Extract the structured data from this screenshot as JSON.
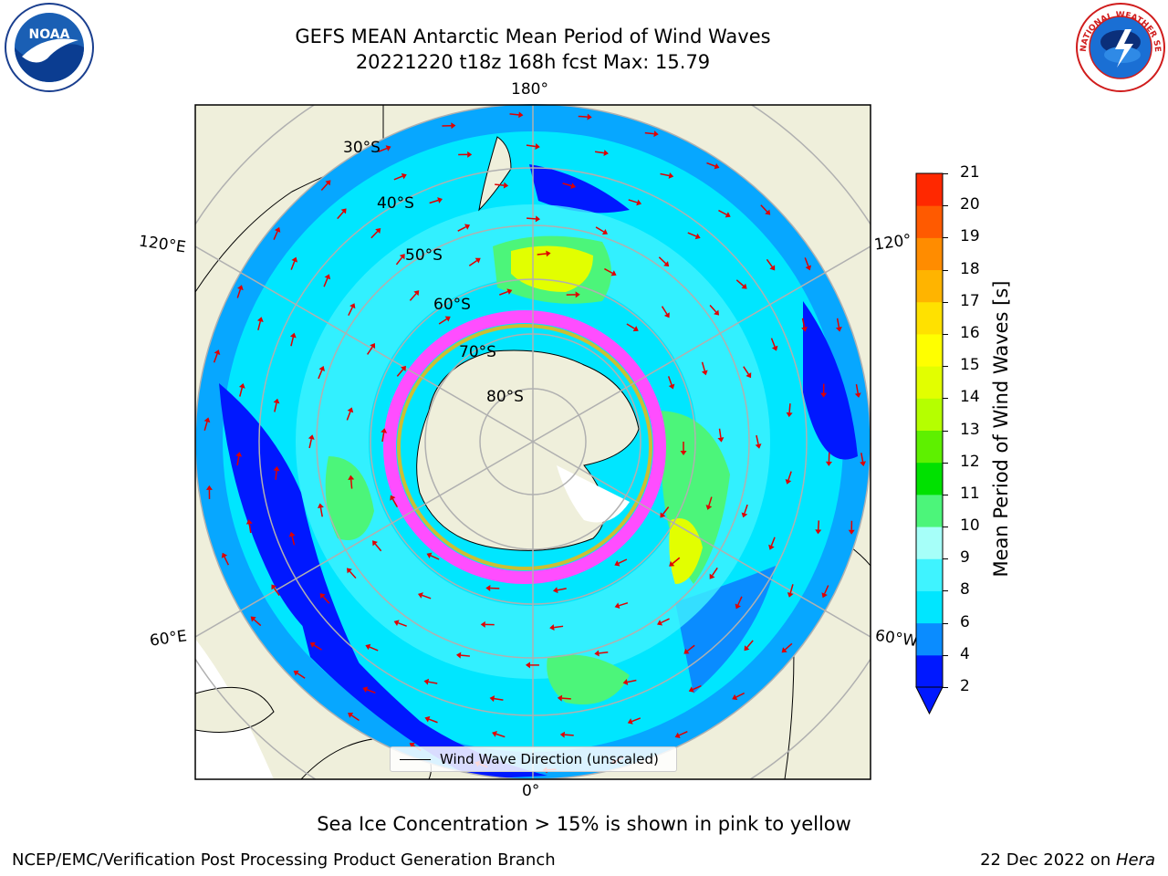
{
  "title_line1": "GEFS MEAN Antarctic Mean Period of Wind Waves",
  "title_line2": "20221220 t18z 168h fcst   Max: 15.79",
  "logos": {
    "left": "noaa-logo",
    "right": "national-weather-service-logo"
  },
  "map": {
    "projection": "south-polar-stereographic",
    "lon_labels": [
      "180°",
      "120°E",
      "120°",
      "60°E",
      "60°W",
      "0°"
    ],
    "lat_labels": [
      "30°S",
      "40°S",
      "50°S",
      "60°S",
      "70°S",
      "80°S"
    ],
    "legend_label": "Wind Wave Direction (unscaled)"
  },
  "colorbar": {
    "label": "Mean Period of Wind Waves [s]",
    "ticks": [
      "2",
      "4",
      "6",
      "8",
      "9",
      "10",
      "11",
      "12",
      "13",
      "14",
      "15",
      "16",
      "17",
      "18",
      "19",
      "20",
      "21"
    ],
    "colors": [
      "#0018ff",
      "#0a8cff",
      "#00e6ff",
      "#3ff3ff",
      "#a6fff9",
      "#4cf57a",
      "#00e100",
      "#5ef000",
      "#b5ff00",
      "#e2ff00",
      "#ffff00",
      "#ffe100",
      "#ffb400",
      "#ff8c00",
      "#ff5a00",
      "#ff2800"
    ]
  },
  "sea_ice_note": "Sea Ice Concentration > 15% is shown in pink to yellow",
  "footer_left": "NCEP/EMC/Verification Post Processing Product Generation Branch",
  "footer_right_prefix": "22 Dec 2022 on ",
  "footer_right_machine": "Hera"
}
